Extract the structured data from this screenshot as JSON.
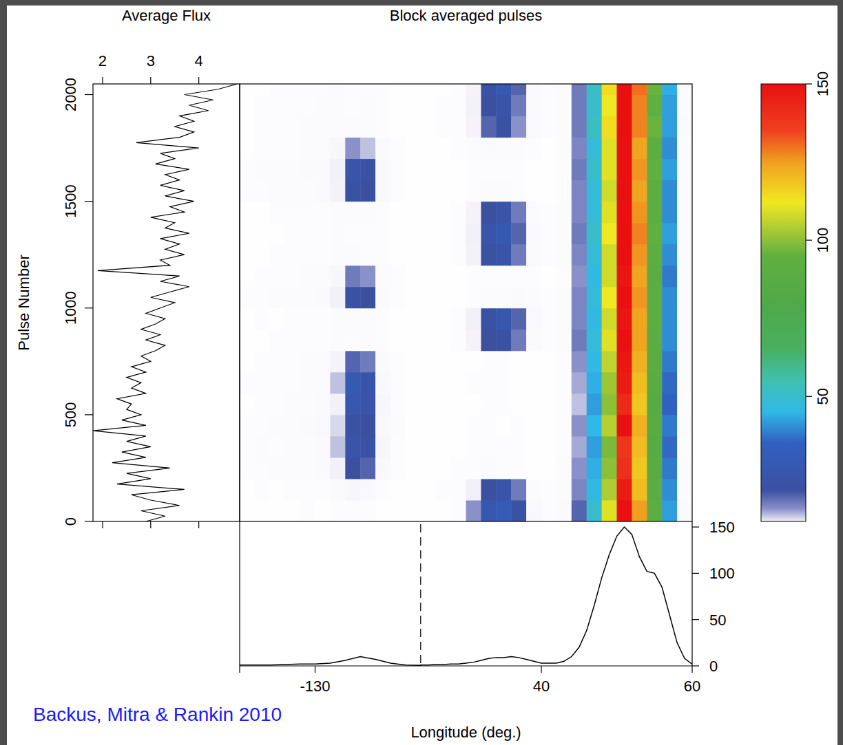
{
  "chart_data": [
    {
      "type": "heatmap",
      "title": "Block averaged pulses",
      "annotation": "Backus, Mitra & Rankin 2010",
      "tick_labels": false,
      "x_segments": [
        {
          "xlim": [
            -140,
            -116
          ]
        },
        {
          "xlim": [
            24,
            60
          ]
        }
      ],
      "x_edges": [
        [
          -140,
          -138,
          -136,
          -134,
          -132,
          -130,
          -128,
          -126,
          -124,
          -122,
          -120,
          -118,
          -116
        ],
        [
          24,
          26,
          28,
          30,
          32,
          34,
          36,
          38,
          40,
          42,
          44,
          46,
          48,
          50,
          52,
          54,
          56,
          58,
          60
        ]
      ],
      "y_edges": [
        0,
        100,
        200,
        300,
        400,
        500,
        600,
        700,
        800,
        900,
        1000,
        1100,
        1200,
        1300,
        1400,
        1500,
        1600,
        1700,
        1800,
        1900,
        2000,
        2050
      ],
      "ylim": [
        0,
        2050
      ],
      "cells": [
        [
          1,
          1,
          1,
          1,
          2,
          1,
          2,
          2,
          2,
          1,
          1,
          1,
          1,
          1,
          2,
          14,
          26,
          30,
          22,
          5,
          2,
          4,
          18,
          50,
          110,
          150,
          125,
          92,
          42,
          4
        ],
        [
          1,
          2,
          1,
          2,
          2,
          2,
          4,
          6,
          5,
          2,
          1,
          1,
          1,
          2,
          2,
          10,
          20,
          24,
          16,
          3,
          2,
          3,
          15,
          46,
          104,
          146,
          120,
          90,
          40,
          3
        ],
        [
          2,
          2,
          3,
          3,
          3,
          4,
          10,
          20,
          18,
          5,
          2,
          1,
          1,
          1,
          2,
          2,
          3,
          2,
          2,
          1,
          1,
          3,
          14,
          44,
          100,
          140,
          118,
          88,
          38,
          3
        ],
        [
          2,
          3,
          2,
          3,
          3,
          4,
          12,
          24,
          22,
          6,
          2,
          1,
          1,
          1,
          1,
          2,
          2,
          2,
          2,
          1,
          1,
          2,
          13,
          42,
          98,
          138,
          120,
          86,
          36,
          2
        ],
        [
          2,
          2,
          3,
          3,
          4,
          5,
          11,
          22,
          20,
          5,
          3,
          1,
          1,
          1,
          1,
          2,
          2,
          1,
          2,
          1,
          1,
          2,
          14,
          45,
          105,
          150,
          122,
          88,
          38,
          3
        ],
        [
          1,
          2,
          2,
          3,
          3,
          4,
          10,
          26,
          24,
          6,
          2,
          1,
          1,
          1,
          1,
          1,
          2,
          2,
          1,
          1,
          1,
          2,
          12,
          42,
          100,
          142,
          118,
          86,
          35,
          2
        ],
        [
          2,
          2,
          2,
          2,
          3,
          3,
          12,
          28,
          25,
          5,
          2,
          1,
          1,
          1,
          1,
          2,
          2,
          2,
          1,
          1,
          1,
          2,
          13,
          44,
          102,
          146,
          120,
          88,
          36,
          3
        ],
        [
          1,
          2,
          2,
          2,
          3,
          3,
          8,
          18,
          16,
          4,
          2,
          1,
          1,
          1,
          1,
          1,
          2,
          2,
          1,
          1,
          1,
          2,
          14,
          46,
          106,
          148,
          122,
          90,
          38,
          3
        ],
        [
          1,
          1,
          2,
          2,
          2,
          2,
          3,
          2,
          3,
          2,
          1,
          1,
          1,
          1,
          2,
          8,
          20,
          22,
          16,
          4,
          2,
          3,
          16,
          48,
          110,
          150,
          124,
          90,
          40,
          3
        ],
        [
          1,
          2,
          1,
          2,
          2,
          2,
          3,
          3,
          3,
          2,
          1,
          1,
          1,
          1,
          2,
          10,
          22,
          26,
          18,
          5,
          2,
          3,
          15,
          46,
          108,
          148,
          124,
          92,
          40,
          3
        ],
        [
          2,
          2,
          3,
          3,
          3,
          4,
          10,
          22,
          20,
          4,
          2,
          1,
          1,
          1,
          1,
          2,
          3,
          3,
          4,
          3,
          2,
          3,
          15,
          48,
          112,
          150,
          126,
          92,
          40,
          3
        ],
        [
          1,
          2,
          2,
          2,
          3,
          3,
          6,
          16,
          14,
          3,
          2,
          1,
          1,
          1,
          1,
          2,
          2,
          2,
          2,
          2,
          1,
          2,
          14,
          46,
          108,
          148,
          124,
          90,
          38,
          3
        ],
        [
          1,
          1,
          2,
          2,
          2,
          2,
          3,
          3,
          2,
          2,
          1,
          1,
          1,
          1,
          2,
          9,
          22,
          24,
          16,
          4,
          2,
          3,
          15,
          48,
          108,
          150,
          126,
          92,
          40,
          3
        ],
        [
          1,
          1,
          1,
          2,
          2,
          2,
          3,
          2,
          2,
          2,
          1,
          1,
          1,
          1,
          2,
          10,
          24,
          28,
          18,
          4,
          2,
          3,
          16,
          50,
          112,
          150,
          128,
          94,
          42,
          3
        ],
        [
          1,
          1,
          2,
          2,
          2,
          2,
          3,
          3,
          3,
          2,
          1,
          1,
          1,
          1,
          2,
          8,
          20,
          24,
          16,
          3,
          2,
          3,
          15,
          48,
          110,
          150,
          126,
          92,
          40,
          3
        ],
        [
          2,
          2,
          3,
          3,
          3,
          4,
          9,
          22,
          20,
          5,
          2,
          1,
          1,
          1,
          1,
          2,
          3,
          3,
          2,
          1,
          1,
          2,
          15,
          48,
          108,
          150,
          124,
          92,
          40,
          3
        ],
        [
          2,
          3,
          3,
          3,
          4,
          4,
          10,
          24,
          22,
          5,
          2,
          1,
          1,
          1,
          1,
          2,
          2,
          2,
          2,
          1,
          1,
          2,
          16,
          50,
          110,
          150,
          126,
          94,
          42,
          3
        ],
        [
          1,
          2,
          2,
          2,
          3,
          3,
          6,
          14,
          12,
          4,
          2,
          1,
          1,
          1,
          2,
          3,
          4,
          3,
          3,
          2,
          1,
          3,
          15,
          48,
          110,
          150,
          124,
          92,
          40,
          3
        ],
        [
          1,
          2,
          2,
          2,
          3,
          3,
          3,
          3,
          3,
          2,
          1,
          1,
          1,
          2,
          2,
          8,
          18,
          22,
          14,
          4,
          2,
          3,
          16,
          52,
          114,
          150,
          128,
          96,
          42,
          4
        ],
        [
          1,
          2,
          2,
          2,
          2,
          3,
          3,
          2,
          3,
          2,
          1,
          1,
          1,
          2,
          2,
          9,
          20,
          24,
          16,
          4,
          2,
          3,
          16,
          50,
          112,
          150,
          128,
          94,
          42,
          3
        ],
        [
          1,
          1,
          2,
          2,
          2,
          2,
          3,
          2,
          2,
          2,
          1,
          1,
          1,
          1,
          2,
          8,
          22,
          28,
          18,
          4,
          2,
          3,
          16,
          52,
          114,
          150,
          130,
          96,
          44,
          4
        ]
      ],
      "colorbar": {
        "range": [
          10,
          150
        ],
        "ticks": [
          50,
          100,
          150
        ]
      }
    },
    {
      "type": "line",
      "title": "Average Flux",
      "xlabel": "Pulse Number",
      "orientation": "horizontal",
      "x": [
        0,
        25,
        50,
        75,
        100,
        125,
        150,
        175,
        200,
        225,
        250,
        275,
        300,
        325,
        350,
        375,
        400,
        425,
        450,
        475,
        500,
        525,
        550,
        575,
        600,
        625,
        650,
        675,
        700,
        725,
        750,
        775,
        800,
        825,
        850,
        875,
        900,
        925,
        950,
        975,
        1000,
        1025,
        1050,
        1075,
        1100,
        1125,
        1150,
        1175,
        1200,
        1225,
        1250,
        1275,
        1300,
        1325,
        1350,
        1375,
        1400,
        1425,
        1450,
        1475,
        1500,
        1525,
        1550,
        1575,
        1600,
        1625,
        1650,
        1675,
        1700,
        1725,
        1750,
        1775,
        1800,
        1825,
        1850,
        1875,
        1900,
        1925,
        1950,
        1975,
        2000,
        2025,
        2050
      ],
      "values": [
        2.9,
        3.3,
        2.8,
        3.6,
        3.0,
        2.6,
        3.7,
        2.3,
        3.0,
        2.5,
        3.4,
        2.2,
        2.9,
        2.4,
        3.0,
        2.5,
        2.9,
        1.8,
        2.9,
        2.4,
        2.8,
        2.5,
        2.6,
        2.3,
        2.9,
        2.6,
        2.8,
        2.5,
        2.9,
        2.6,
        3.0,
        2.8,
        3.1,
        3.3,
        2.9,
        3.2,
        2.8,
        3.1,
        3.3,
        2.9,
        3.2,
        3.5,
        3.0,
        3.4,
        3.8,
        3.2,
        3.6,
        1.9,
        3.4,
        3.2,
        3.7,
        3.3,
        3.6,
        3.2,
        3.8,
        3.3,
        3.5,
        3.0,
        3.7,
        3.4,
        3.9,
        3.3,
        3.7,
        3.2,
        3.6,
        3.3,
        3.8,
        3.1,
        3.5,
        3.2,
        4.0,
        2.7,
        3.6,
        3.9,
        3.5,
        3.9,
        3.6,
        4.2,
        3.8,
        4.3,
        3.7,
        4.4,
        4.8
      ],
      "xlim": [
        0,
        2050
      ],
      "xticks": [
        0,
        500,
        1000,
        1500,
        2000
      ],
      "ylim": [
        1.8,
        4.85
      ],
      "yticks": [
        2,
        3,
        4
      ]
    },
    {
      "type": "line",
      "xlabel": "Longitude (deg.)",
      "x_segments": [
        {
          "xlim": [
            -140,
            -116
          ],
          "xticks": [
            -130
          ]
        },
        {
          "xlim": [
            24,
            60
          ],
          "xticks": [
            40,
            60
          ]
        }
      ],
      "x": [
        -140,
        -138,
        -136,
        -134,
        -132,
        -130,
        -128,
        -126,
        -124,
        -122,
        -120,
        -118,
        -116,
        24,
        25,
        26,
        27,
        28,
        29,
        30,
        31,
        32,
        33,
        34,
        35,
        36,
        37,
        38,
        39,
        40,
        41,
        42,
        43,
        44,
        45,
        46,
        47,
        48,
        49,
        50,
        51,
        52,
        53,
        54,
        55,
        56,
        57,
        58,
        59,
        60
      ],
      "values": [
        1,
        1,
        1,
        1.5,
        2,
        2,
        3,
        6,
        10,
        7,
        3,
        1,
        0.5,
        1,
        1,
        1.5,
        1.5,
        2,
        2,
        3,
        4,
        6,
        8,
        9,
        9,
        10,
        9,
        7,
        5,
        3,
        3,
        3,
        5,
        10,
        20,
        38,
        65,
        95,
        120,
        140,
        150,
        142,
        118,
        102,
        100,
        85,
        55,
        25,
        8,
        2
      ],
      "ylim": [
        0,
        156
      ],
      "yticks": [
        0,
        50,
        100,
        150
      ]
    }
  ]
}
